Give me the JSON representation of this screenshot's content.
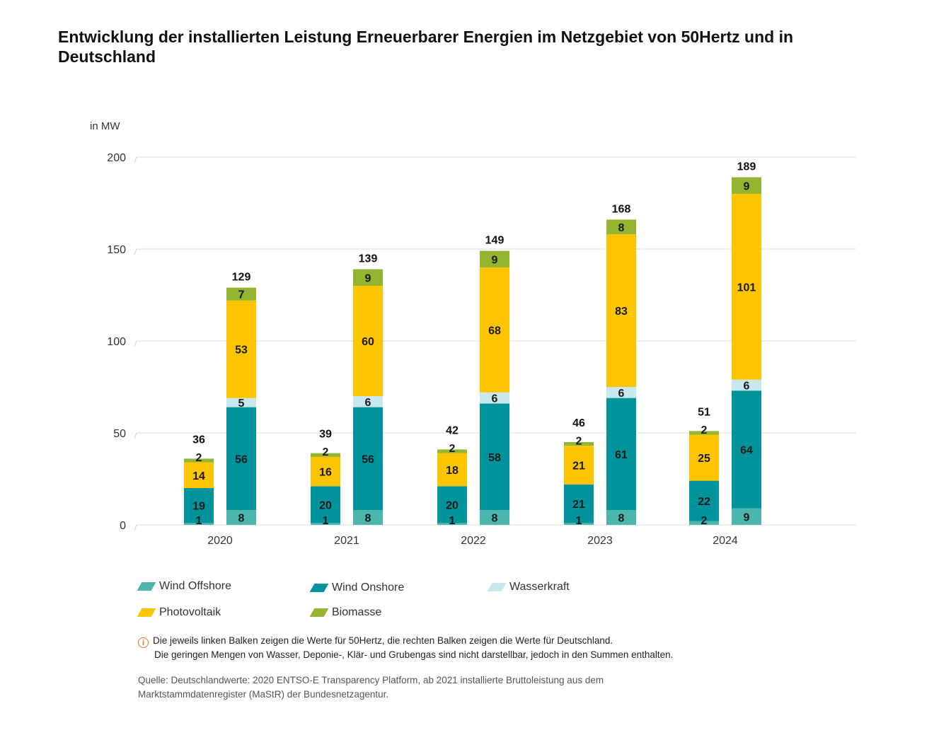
{
  "title": "Entwicklung der installierten Leistung Erneuerbarer Energien im Netzgebiet von 50Hertz und in Deutschland",
  "chart_data": {
    "type": "bar",
    "stacked": true,
    "grouped": true,
    "unit_label": "in MW",
    "ylim": [
      0,
      200
    ],
    "yticks": [
      0,
      50,
      100,
      150,
      200
    ],
    "grid": true,
    "categories": [
      "2020",
      "2021",
      "2022",
      "2023",
      "2024"
    ],
    "groups": [
      "50Hertz",
      "Deutschland"
    ],
    "series": [
      {
        "name": "Wind Offshore",
        "color": "#4db6ac",
        "values": {
          "50Hertz": [
            1,
            1,
            1,
            1,
            2
          ],
          "Deutschland": [
            8,
            8,
            8,
            8,
            9
          ]
        }
      },
      {
        "name": "Wind Onshore",
        "color": "#00939c",
        "values": {
          "50Hertz": [
            19,
            20,
            20,
            21,
            22
          ],
          "Deutschland": [
            56,
            56,
            58,
            61,
            64
          ]
        }
      },
      {
        "name": "Wasserkraft",
        "color": "#c8e8ee",
        "values": {
          "50Hertz": [
            0,
            0,
            0,
            0,
            0
          ],
          "Deutschland": [
            5,
            6,
            6,
            6,
            6
          ]
        }
      },
      {
        "name": "Photovoltaik",
        "color": "#fcc500",
        "values": {
          "50Hertz": [
            14,
            16,
            18,
            21,
            25
          ],
          "Deutschland": [
            53,
            60,
            68,
            83,
            101
          ]
        }
      },
      {
        "name": "Biomasse",
        "color": "#95b42f",
        "values": {
          "50Hertz": [
            2,
            2,
            2,
            2,
            2
          ],
          "Deutschland": [
            7,
            9,
            9,
            8,
            9
          ]
        }
      }
    ],
    "totals": {
      "50Hertz": [
        36,
        39,
        42,
        46,
        51
      ],
      "Deutschland": [
        129,
        139,
        149,
        168,
        189
      ]
    },
    "legend_placement": "bottom"
  },
  "legend": [
    {
      "label": "Wind Offshore",
      "color": "#4db6ac"
    },
    {
      "label": "Wind Onshore",
      "color": "#00939c"
    },
    {
      "label": "Wasserkraft",
      "color": "#c8e8ee"
    },
    {
      "label": "Photovoltaik",
      "color": "#fcc500"
    },
    {
      "label": "Biomasse",
      "color": "#95b42f"
    }
  ],
  "note": {
    "icon": "info-icon",
    "line1": "Die jeweils linken Balken zeigen die Werte für 50Hertz, die rechten Balken zeigen die Werte für Deutschland.",
    "line2": "Die geringen Mengen von Wasser, Deponie-, Klär- und Grubengas sind nicht darstellbar, jedoch in den Summen enthalten."
  },
  "source": "Quelle: Deutschlandwerte: 2020 ENTSO-E Transparency Platform, ab 2021 installierte Bruttoleistung aus dem Marktstammdatenregister (MaStR) der Bundesnetzagentur."
}
